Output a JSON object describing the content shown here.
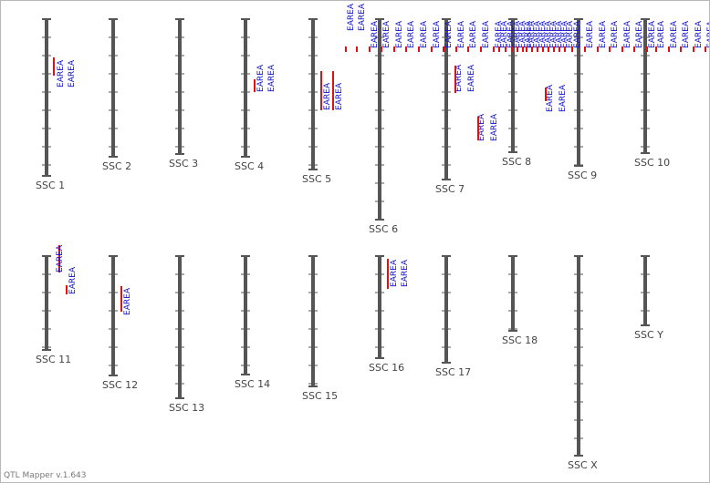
{
  "app": {
    "version": "QTL Mapper v.1.643"
  },
  "colors": {
    "chromosome": "#555555",
    "qtl_bar": "#e01010",
    "qtl_text": "#1010cc",
    "label": "#444444"
  },
  "qtl_trait": "EAREA",
  "chromosomes": [
    {
      "name": "SSC 1"
    },
    {
      "name": "SSC 2"
    },
    {
      "name": "SSC 3"
    },
    {
      "name": "SSC 4"
    },
    {
      "name": "SSC 5"
    },
    {
      "name": "SSC 6"
    },
    {
      "name": "SSC 7"
    },
    {
      "name": "SSC 8"
    },
    {
      "name": "SSC 9"
    },
    {
      "name": "SSC 10"
    },
    {
      "name": "SSC 11"
    },
    {
      "name": "SSC 12"
    },
    {
      "name": "SSC 13"
    },
    {
      "name": "SSC 14"
    },
    {
      "name": "SSC 15"
    },
    {
      "name": "SSC 16"
    },
    {
      "name": "SSC 17"
    },
    {
      "name": "SSC 18"
    },
    {
      "name": "SSC X"
    },
    {
      "name": "SSC Y"
    }
  ]
}
